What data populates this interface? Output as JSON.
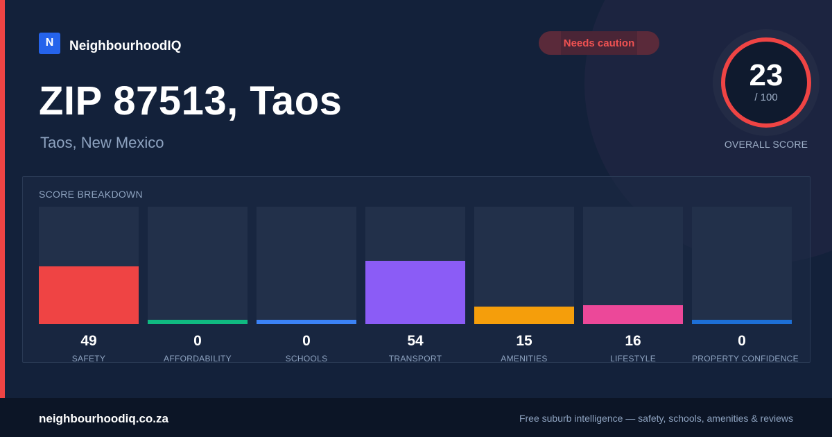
{
  "brand": {
    "logo_letter": "N",
    "name": "NeighbourhoodIQ"
  },
  "status": {
    "label": "Needs caution",
    "color": "#f05252"
  },
  "location": {
    "title": "ZIP 87513, Taos",
    "subtitle": "Taos, New Mexico"
  },
  "overall": {
    "score": "23",
    "max": "/ 100",
    "label": "OVERALL SCORE",
    "fraction": 0.23,
    "ring_color": "#ef4444"
  },
  "breakdown": {
    "title": "SCORE BREAKDOWN",
    "items": [
      {
        "label": "SAFETY",
        "value": "49",
        "score": 49,
        "color": "#ef4444"
      },
      {
        "label": "AFFORDABILITY",
        "value": "0",
        "score": 0,
        "color": "#10b981"
      },
      {
        "label": "SCHOOLS",
        "value": "0",
        "score": 0,
        "color": "#3b82f6"
      },
      {
        "label": "TRANSPORT",
        "value": "54",
        "score": 54,
        "color": "#8b5cf6"
      },
      {
        "label": "AMENITIES",
        "value": "15",
        "score": 15,
        "color": "#f59e0b"
      },
      {
        "label": "LIFESTYLE",
        "value": "16",
        "score": 16,
        "color": "#ec4899"
      },
      {
        "label": "PROPERTY CONFIDENCE",
        "value": "0",
        "score": 0,
        "color": "#1d6fd6"
      }
    ]
  },
  "footer": {
    "url": "neighbourhoodiq.co.za",
    "tagline": "Free suburb intelligence — safety, schools, amenities & reviews"
  }
}
